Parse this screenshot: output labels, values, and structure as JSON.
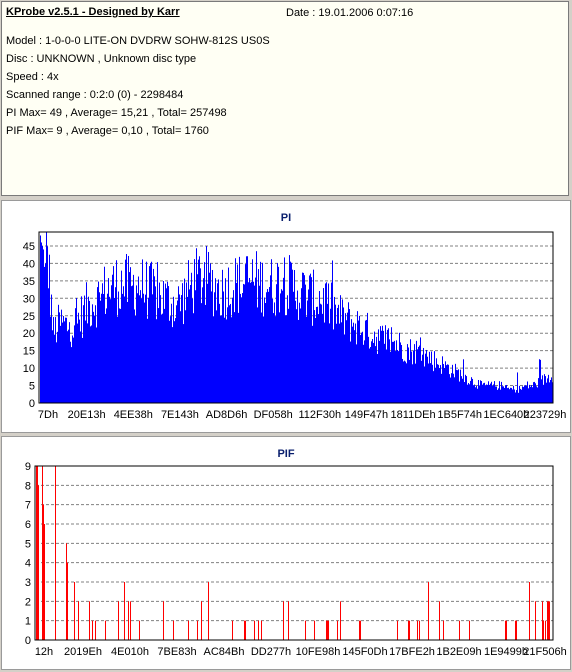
{
  "header": {
    "title": "KProbe v2.5.1 - Designed by Karr",
    "date": "Date : 19.01.2006 0:07:16",
    "lines": [
      "Model : 1-0-0-0 LITE-ON DVDRW SOHW-812S  US0S",
      "Disc : UNKNOWN , Unknown disc type",
      "Speed : 4x",
      "Scanned range : 0:2:0 (0) - 2298484",
      "PI Max= 49 , Average= 15,21 , Total= 257498",
      "PIF Max= 9 , Average= 0,10 , Total= 1760"
    ]
  },
  "colors": {
    "pi_series": "#0000ff",
    "pif_series": "#ff0000",
    "title": "#0a1f6e",
    "grid": "#808080"
  },
  "chart_data": [
    {
      "type": "bar",
      "title": "PI",
      "xlabel": "",
      "ylabel": "",
      "ylim": [
        0,
        49
      ],
      "yticks": [
        0,
        5,
        10,
        15,
        20,
        25,
        30,
        35,
        40,
        45
      ],
      "grid": true,
      "x_tick_labels": [
        "7Dh",
        "20E13h",
        "4EE38h",
        "7E143h",
        "AD8D6h",
        "DF058h",
        "112F30h",
        "149F47h",
        "1811DEh",
        "1B5F74h",
        "1EC640h",
        "223729h"
      ],
      "series": [
        {
          "values": [
            40,
            45,
            20,
            23,
            22,
            22,
            24,
            27,
            29,
            30,
            32,
            33,
            34,
            34,
            33,
            34,
            33,
            32,
            31,
            30,
            29,
            28,
            30,
            33,
            35,
            36,
            35,
            33,
            32,
            33,
            34,
            34,
            35,
            35,
            34,
            34,
            33,
            35,
            34,
            33,
            32,
            31,
            30,
            30,
            29,
            27,
            25,
            24,
            23,
            22,
            21,
            20,
            19,
            18,
            18,
            17,
            16,
            15,
            15,
            14,
            13,
            12,
            11,
            10,
            9,
            8,
            7,
            6,
            5,
            5,
            5,
            5,
            4,
            4,
            4,
            5,
            5,
            6,
            7,
            8
          ]
        }
      ],
      "peaks": [
        48,
        46,
        45,
        44,
        39,
        40,
        42,
        41
      ]
    },
    {
      "type": "bar",
      "title": "PIF",
      "xlabel": "",
      "ylabel": "",
      "ylim": [
        0,
        9
      ],
      "yticks": [
        0,
        1,
        2,
        3,
        4,
        5,
        6,
        7,
        8,
        9
      ],
      "grid": true,
      "x_tick_labels": [
        "12h",
        "2019Eh",
        "4E010h",
        "7BE83h",
        "AC84Bh",
        "DD277h",
        "10FE98h",
        "145F0Dh",
        "17BFE2h",
        "1B2E09h",
        "1E9499h",
        "21F506h"
      ],
      "series": [
        {
          "values": [
            9,
            9,
            8,
            3,
            2,
            2,
            1,
            1,
            2,
            2,
            1,
            0,
            2,
            1,
            1,
            1,
            2,
            2,
            2,
            1,
            1,
            1,
            1,
            1,
            2,
            2,
            1,
            1,
            1,
            2,
            1,
            1,
            1,
            2,
            2,
            1,
            1,
            2,
            2,
            1,
            1,
            1,
            1,
            2,
            1,
            1,
            2,
            2,
            2,
            3
          ]
        }
      ]
    }
  ]
}
